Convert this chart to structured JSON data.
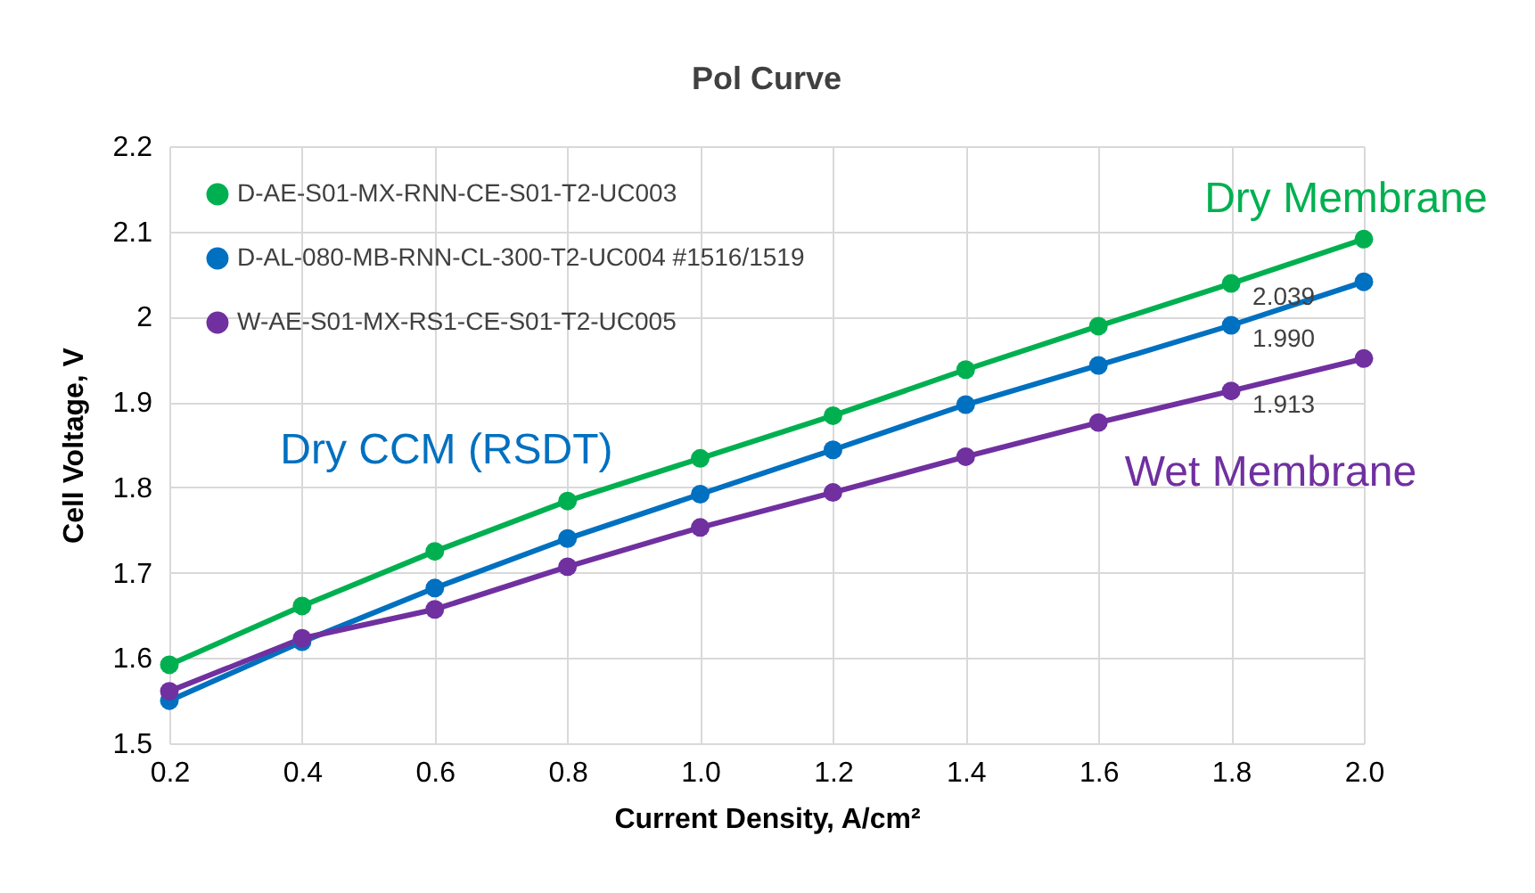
{
  "chart_data": {
    "type": "line",
    "title": "Pol Curve",
    "xlabel": "Current Density, A/cm²",
    "ylabel": "Cell Voltage, V",
    "x": [
      0.2,
      0.4,
      0.6,
      0.8,
      1.0,
      1.2,
      1.4,
      1.6,
      1.8,
      2.0
    ],
    "series": [
      {
        "name": "D-AE-S01-MX-RNN-CE-S01-T2-UC003",
        "color": "#00b050",
        "values": [
          1.592,
          1.661,
          1.725,
          1.784,
          1.834,
          1.884,
          1.938,
          1.989,
          2.039,
          2.091
        ],
        "value_labels": [
          null,
          null,
          null,
          null,
          null,
          null,
          null,
          null,
          "2.039",
          null
        ]
      },
      {
        "name": "D-AL-080-MB-RNN-CL-300-T2-UC004 #1516/1519",
        "color": "#0070c0",
        "values": [
          1.55,
          1.619,
          1.682,
          1.74,
          1.792,
          1.844,
          1.897,
          1.943,
          1.99,
          2.041
        ],
        "value_labels": [
          null,
          null,
          null,
          null,
          null,
          null,
          null,
          null,
          "1.990",
          null
        ]
      },
      {
        "name": "W-AE-S01-MX-RS1-CE-S01-T2-UC005",
        "color": "#7030a0",
        "values": [
          1.561,
          1.623,
          1.657,
          1.707,
          1.753,
          1.794,
          1.836,
          1.876,
          1.913,
          1.951
        ],
        "value_labels": [
          null,
          null,
          null,
          null,
          null,
          null,
          null,
          null,
          "1.913",
          null
        ]
      }
    ],
    "annotations": [
      "Dry Membrane",
      "Dry CCM (RSDT)",
      "Wet Membrane"
    ],
    "xlim": [
      0.2,
      2.0
    ],
    "xticks": [
      0.2,
      0.4,
      0.6,
      0.8,
      {
        "value": 1.0,
        "label": "1.0"
      },
      1.2,
      1.4,
      1.6,
      1.8,
      {
        "value": 2.0,
        "label": "2.0"
      }
    ],
    "ylim": [
      1.5,
      2.2
    ],
    "yticks": [
      1.5,
      1.6,
      1.7,
      1.8,
      1.9,
      2,
      2.1,
      2.2
    ],
    "grid": true,
    "legend": "top left",
    "marker": "circle",
    "line_style": "solid"
  }
}
